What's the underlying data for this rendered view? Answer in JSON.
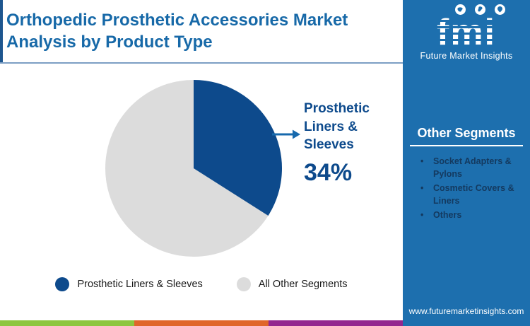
{
  "header": {
    "title": "Orthopedic Prosthetic Accessories Market Analysis by Product Type"
  },
  "logo": {
    "brand": "fmi",
    "tagline": "Future Market Insights"
  },
  "sidebar": {
    "heading": "Other Segments",
    "items": [
      "Socket Adapters & Pylons",
      "Cosmetic Covers & Liners",
      "Others"
    ],
    "url": "www.futuremarketinsights.com"
  },
  "chart_data": {
    "type": "pie",
    "title": "Orthopedic Prosthetic Accessories Market Analysis by Product Type",
    "categories": [
      "Prosthetic Liners & Sleeves",
      "All Other Segments"
    ],
    "values": [
      34,
      66
    ],
    "unit": "%",
    "colors": [
      "#0d4a8c",
      "#dcdcdc"
    ],
    "start_angle_deg": 0,
    "direction": "clockwise",
    "legend_position": "bottom",
    "callout": {
      "label": "Prosthetic Liners & Sleeves",
      "value_label": "34%"
    }
  },
  "legend": {
    "items": [
      {
        "label": "Prosthetic Liners & Sleeves",
        "color": "#0d4a8c"
      },
      {
        "label": "All Other Segments",
        "color": "#dcdcdc"
      }
    ]
  },
  "theme": {
    "title_color": "#1769a8",
    "sidebar_bg": "#1d6fae",
    "navy": "#0d4a8c",
    "bullet_text": "#143a60",
    "divider": "#7d9fc4",
    "stripe_green": "#8dc63f",
    "stripe_orange": "#e0662a",
    "stripe_purple": "#93278f"
  }
}
